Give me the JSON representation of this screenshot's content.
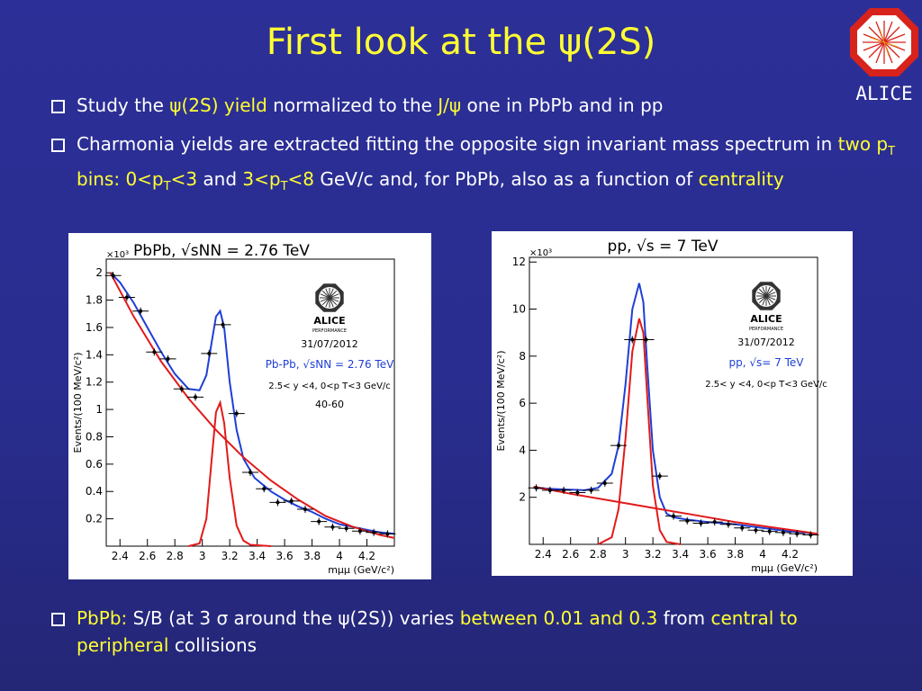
{
  "title": {
    "prefix": "First look at the ",
    "psi": "ψ",
    "suffix": "(2S)"
  },
  "bullets": {
    "b1": {
      "t1": "Study the ",
      "h1": "ψ(2S) yield",
      "t2": " normalized to the ",
      "h2": "J/ψ",
      "t3": " one in PbPb and in pp"
    },
    "b2": {
      "t1": "Charmonia yields are extracted fitting the opposite sign invariant mass spectrum in ",
      "h1a": "two p",
      "h1sub": "T",
      "h1b": " bins: 0<p",
      "h1sub2": "T",
      "h1c": "<3",
      "t2": " and ",
      "h2a": "3<p",
      "h2sub": "T",
      "h2b": "<8",
      "t3": " GeV/c and, for PbPb, also as a function of ",
      "h3": "centrality"
    },
    "b3": {
      "h1": "PbPb:",
      "t1": " S/B (at 3 σ around the ψ(2S)) varies ",
      "h2": "between 0.01 and 0.3",
      "t2": " from ",
      "h3": "central to peripheral",
      "t3": " collisions"
    }
  },
  "logo": {
    "text": "ALICE"
  },
  "chart_data": [
    {
      "type": "line",
      "title": "PbPb, √sNN = 2.76 TeV",
      "xlabel": "mμμ (GeV/c²)",
      "ylabel": "Events/(100 MeV/c²)",
      "yscale_label": "×10³",
      "xlim": [
        2.3,
        4.4
      ],
      "ylim": [
        0,
        2.1
      ],
      "x_ticks": [
        "2.4",
        "2.6",
        "2.8",
        "3",
        "3.2",
        "3.4",
        "3.6",
        "3.8",
        "4",
        "4.2"
      ],
      "y_ticks": [
        "0.2",
        "0.4",
        "0.6",
        "0.8",
        "1",
        "1.2",
        "1.4",
        "1.6",
        "1.8",
        "2"
      ],
      "annotations": {
        "logo": "ALICE",
        "performance": "PERFORMANCE",
        "date": "31/07/2012",
        "system": "Pb-Pb, √sNN = 2.76 TeV",
        "cuts": "2.5< y <4, 0<p T<3 GeV/c",
        "centrality": "40-60"
      },
      "points": {
        "x": [
          2.35,
          2.45,
          2.55,
          2.65,
          2.75,
          2.85,
          2.95,
          3.05,
          3.15,
          3.25,
          3.35,
          3.45,
          3.55,
          3.65,
          3.75,
          3.85,
          3.95,
          4.05,
          4.15,
          4.25,
          4.35
        ],
        "y": [
          1.98,
          1.82,
          1.72,
          1.42,
          1.37,
          1.15,
          1.09,
          1.41,
          1.62,
          0.97,
          0.54,
          0.42,
          0.32,
          0.33,
          0.27,
          0.18,
          0.14,
          0.13,
          0.11,
          0.1,
          0.09
        ]
      },
      "series": [
        {
          "name": "total fit",
          "color": "#1f3fd6",
          "x": [
            2.33,
            2.4,
            2.5,
            2.6,
            2.7,
            2.8,
            2.9,
            2.98,
            3.03,
            3.07,
            3.1,
            3.13,
            3.16,
            3.2,
            3.25,
            3.3,
            3.38,
            3.5,
            3.6,
            3.7,
            3.8,
            3.9,
            4.0,
            4.1,
            4.2,
            4.3,
            4.4
          ],
          "y": [
            2.0,
            1.93,
            1.78,
            1.6,
            1.42,
            1.26,
            1.15,
            1.14,
            1.25,
            1.5,
            1.68,
            1.72,
            1.6,
            1.2,
            0.85,
            0.64,
            0.5,
            0.4,
            0.34,
            0.29,
            0.25,
            0.2,
            0.16,
            0.14,
            0.12,
            0.1,
            0.09
          ]
        },
        {
          "name": "background",
          "color": "#e21a1a",
          "x": [
            2.33,
            2.5,
            2.7,
            2.9,
            3.1,
            3.3,
            3.5,
            3.7,
            3.9,
            4.1,
            4.3,
            4.4
          ],
          "y": [
            2.0,
            1.68,
            1.35,
            1.08,
            0.85,
            0.65,
            0.48,
            0.34,
            0.22,
            0.14,
            0.08,
            0.06
          ]
        },
        {
          "name": "J/psi signal",
          "color": "#e21a1a",
          "x": [
            2.9,
            2.98,
            3.03,
            3.07,
            3.1,
            3.13,
            3.16,
            3.2,
            3.25,
            3.3,
            3.35,
            3.5
          ],
          "y": [
            0.0,
            0.02,
            0.2,
            0.65,
            0.98,
            1.05,
            0.9,
            0.5,
            0.15,
            0.04,
            0.01,
            0.0
          ]
        }
      ]
    },
    {
      "type": "line",
      "title": "pp, √s = 7 TeV",
      "xlabel": "mμμ (GeV/c²)",
      "ylabel": "Events/(100 MeV/c²)",
      "yscale_label": "×10³",
      "xlim": [
        2.3,
        4.4
      ],
      "ylim": [
        0,
        12.2
      ],
      "x_ticks": [
        "2.4",
        "2.6",
        "2.8",
        "3",
        "3.2",
        "3.4",
        "3.6",
        "3.8",
        "4",
        "4.2"
      ],
      "y_ticks": [
        "2",
        "4",
        "6",
        "8",
        "10",
        "12"
      ],
      "annotations": {
        "logo": "ALICE",
        "performance": "PERFORMANCE",
        "date": "31/07/2012",
        "system": "pp, √s= 7 TeV",
        "cuts": "2.5< y <4, 0<p T<3 GeV/c"
      },
      "points": {
        "x": [
          2.35,
          2.45,
          2.55,
          2.65,
          2.75,
          2.85,
          2.95,
          3.05,
          3.15,
          3.25,
          3.35,
          3.45,
          3.55,
          3.65,
          3.75,
          3.85,
          3.95,
          4.05,
          4.15,
          4.25,
          4.35
        ],
        "y": [
          2.4,
          2.3,
          2.3,
          2.2,
          2.3,
          2.6,
          4.2,
          8.7,
          8.7,
          2.9,
          1.2,
          1.0,
          0.9,
          0.95,
          0.85,
          0.7,
          0.6,
          0.55,
          0.5,
          0.45,
          0.4
        ]
      },
      "series": [
        {
          "name": "total fit",
          "color": "#1f3fd6",
          "x": [
            2.33,
            2.5,
            2.7,
            2.8,
            2.9,
            2.95,
            3.0,
            3.05,
            3.1,
            3.13,
            3.16,
            3.2,
            3.25,
            3.3,
            3.35,
            3.45,
            3.6,
            3.8,
            4.0,
            4.2,
            4.4
          ],
          "y": [
            2.4,
            2.35,
            2.3,
            2.4,
            3.0,
            4.2,
            6.8,
            10.0,
            11.1,
            10.3,
            7.5,
            4.0,
            2.0,
            1.3,
            1.15,
            1.05,
            0.95,
            0.85,
            0.7,
            0.55,
            0.45
          ]
        },
        {
          "name": "background",
          "color": "#e21a1a",
          "x": [
            2.33,
            2.6,
            2.9,
            3.2,
            3.5,
            3.8,
            4.1,
            4.4
          ],
          "y": [
            2.45,
            2.15,
            1.85,
            1.55,
            1.25,
            0.95,
            0.7,
            0.45
          ]
        },
        {
          "name": "J/psi signal",
          "color": "#e21a1a",
          "x": [
            2.8,
            2.9,
            2.95,
            3.0,
            3.05,
            3.1,
            3.13,
            3.16,
            3.2,
            3.25,
            3.3,
            3.4
          ],
          "y": [
            0.0,
            0.3,
            1.5,
            4.5,
            8.2,
            9.6,
            9.0,
            6.2,
            2.5,
            0.6,
            0.1,
            0.0
          ]
        }
      ]
    }
  ]
}
